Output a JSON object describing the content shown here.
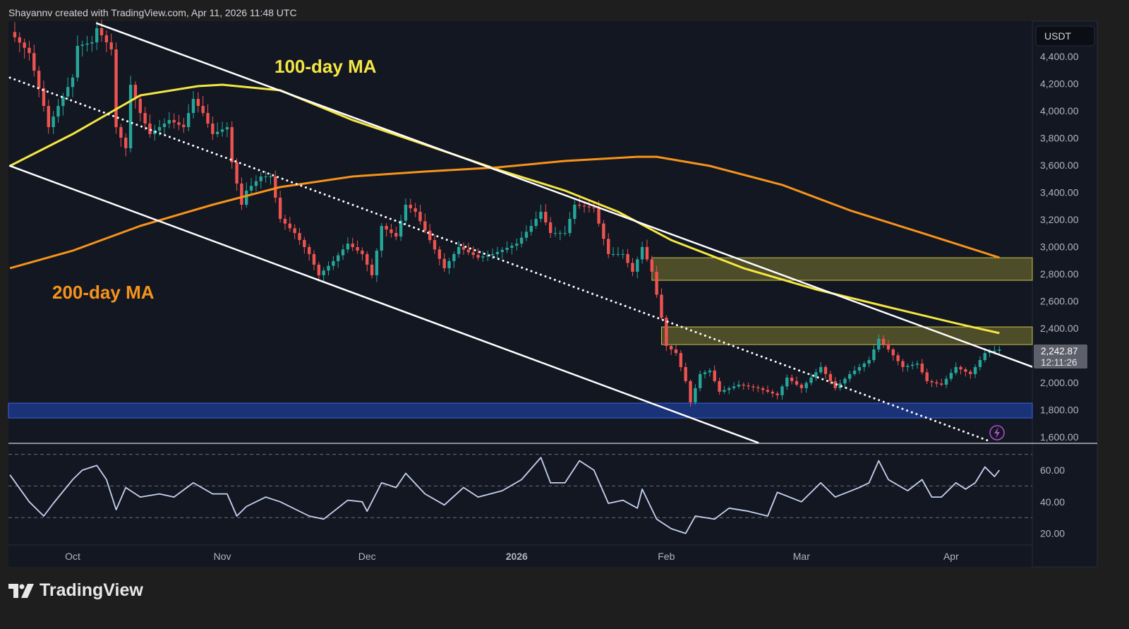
{
  "header": {
    "attribution": "Shayannv created with TradingView.com, Apr 11, 2026 11:48 UTC"
  },
  "footer": {
    "logo_text": "TradingView"
  },
  "colors": {
    "up": "#26a69a",
    "down": "#ef5350",
    "ma100": "#f5e642",
    "ma200": "#f7931a",
    "background": "#131722",
    "rsi": "#c5d3f0"
  },
  "chart_data": {
    "type": "candlestick",
    "currency": "USDT",
    "yticks": [
      "4,400.00",
      "4,200.00",
      "4,000.00",
      "3,800.00",
      "3,600.00",
      "3,400.00",
      "3,200.00",
      "3,000.00",
      "2,800.00",
      "2,600.00",
      "2,400.00",
      "2,000.00",
      "1,800.00",
      "1,600.00"
    ],
    "ytick_values": [
      4400,
      4200,
      4000,
      3800,
      3600,
      3400,
      3200,
      3000,
      2800,
      2600,
      2400,
      2000,
      1800,
      1600
    ],
    "ylim": [
      1600,
      4400
    ],
    "xticks": [
      {
        "label": "Oct",
        "date": "2025-10-01"
      },
      {
        "label": "Nov",
        "date": "2025-11-01"
      },
      {
        "label": "Dec",
        "date": "2025-12-01"
      },
      {
        "label": "2026",
        "date": "2026-01-01"
      },
      {
        "label": "Feb",
        "date": "2026-02-01"
      },
      {
        "label": "Mar",
        "date": "2026-03-01"
      },
      {
        "label": "Apr",
        "date": "2026-04-01"
      }
    ],
    "last_price": "2,242.87",
    "countdown": "12:11:26",
    "closes": [
      [
        "2025-09-18",
        4580
      ],
      [
        "2025-09-22",
        4425
      ],
      [
        "2025-09-25",
        4036
      ],
      [
        "2025-09-26",
        3880
      ],
      [
        "2025-09-28",
        4036
      ],
      [
        "2025-10-01",
        4245
      ],
      [
        "2025-10-02",
        4478
      ],
      [
        "2025-10-05",
        4504
      ],
      [
        "2025-10-06",
        4608
      ],
      [
        "2025-10-09",
        4452
      ],
      [
        "2025-10-10",
        3880
      ],
      [
        "2025-10-12",
        3725
      ],
      [
        "2025-10-13",
        4192
      ],
      [
        "2025-10-15",
        3984
      ],
      [
        "2025-10-17",
        3829
      ],
      [
        "2025-10-21",
        3932
      ],
      [
        "2025-10-24",
        3880
      ],
      [
        "2025-10-26",
        4088
      ],
      [
        "2025-10-28",
        3984
      ],
      [
        "2025-10-30",
        3829
      ],
      [
        "2025-11-02",
        3880
      ],
      [
        "2025-11-03",
        3621
      ],
      [
        "2025-11-05",
        3309
      ],
      [
        "2025-11-06",
        3413
      ],
      [
        "2025-11-09",
        3517
      ],
      [
        "2025-11-11",
        3517
      ],
      [
        "2025-11-13",
        3205
      ],
      [
        "2025-11-16",
        3101
      ],
      [
        "2025-11-19",
        2946
      ],
      [
        "2025-11-21",
        2790
      ],
      [
        "2025-11-24",
        2894
      ],
      [
        "2025-11-27",
        3023
      ],
      [
        "2025-11-30",
        2946
      ],
      [
        "2025-12-02",
        2790
      ],
      [
        "2025-12-04",
        3153
      ],
      [
        "2025-12-07",
        3075
      ],
      [
        "2025-12-09",
        3309
      ],
      [
        "2025-12-11",
        3257
      ],
      [
        "2025-12-14",
        3049
      ],
      [
        "2025-12-17",
        2842
      ],
      [
        "2025-12-20",
        2998
      ],
      [
        "2025-12-24",
        2920
      ],
      [
        "2025-12-27",
        2946
      ],
      [
        "2026-01-01",
        3023
      ],
      [
        "2026-01-04",
        3153
      ],
      [
        "2026-01-06",
        3257
      ],
      [
        "2026-01-08",
        3101
      ],
      [
        "2026-01-11",
        3101
      ],
      [
        "2026-01-13",
        3309
      ],
      [
        "2026-01-17",
        3283
      ],
      [
        "2026-01-20",
        2946
      ],
      [
        "2026-01-23",
        2946
      ],
      [
        "2026-01-25",
        2816
      ],
      [
        "2026-01-27",
        2998
      ],
      [
        "2026-01-29",
        2816
      ],
      [
        "2026-01-31",
        2478
      ],
      [
        "2026-02-01",
        2270
      ],
      [
        "2026-02-03",
        2218
      ],
      [
        "2026-02-05",
        2011
      ],
      [
        "2026-02-06",
        1855
      ],
      [
        "2026-02-08",
        2063
      ],
      [
        "2026-02-10",
        2089
      ],
      [
        "2026-02-12",
        1933
      ],
      [
        "2026-02-16",
        1985
      ],
      [
        "2026-02-20",
        1959
      ],
      [
        "2026-02-24",
        1907
      ],
      [
        "2026-02-26",
        2037
      ],
      [
        "2026-03-01",
        1959
      ],
      [
        "2026-03-05",
        2115
      ],
      [
        "2026-03-08",
        1959
      ],
      [
        "2026-03-11",
        2063
      ],
      [
        "2026-03-15",
        2166
      ],
      [
        "2026-03-17",
        2322
      ],
      [
        "2026-03-19",
        2244
      ],
      [
        "2026-03-22",
        2115
      ],
      [
        "2026-03-25",
        2140
      ],
      [
        "2026-03-27",
        2011
      ],
      [
        "2026-03-30",
        1985
      ],
      [
        "2026-04-02",
        2115
      ],
      [
        "2026-04-05",
        2063
      ],
      [
        "2026-04-08",
        2218
      ],
      [
        "2026-04-11",
        2242.87
      ]
    ],
    "series": [
      {
        "name": "100-day MA",
        "color": "#f5e642",
        "points": [
          [
            "2025-09-18",
            3595
          ],
          [
            "2025-10-01",
            3829
          ],
          [
            "2025-10-15",
            4114
          ],
          [
            "2025-10-27",
            4182
          ],
          [
            "2025-11-01",
            4192
          ],
          [
            "2025-11-13",
            4151
          ],
          [
            "2025-11-28",
            3932
          ],
          [
            "2025-12-13",
            3751
          ],
          [
            "2025-12-28",
            3569
          ],
          [
            "2026-01-11",
            3413
          ],
          [
            "2026-01-22",
            3257
          ],
          [
            "2026-02-02",
            3049
          ],
          [
            "2026-02-17",
            2842
          ],
          [
            "2026-03-04",
            2686
          ],
          [
            "2026-03-19",
            2556
          ],
          [
            "2026-04-02",
            2437
          ],
          [
            "2026-04-11",
            2364
          ]
        ]
      },
      {
        "name": "200-day MA",
        "color": "#f7931a",
        "points": [
          [
            "2025-09-18",
            2842
          ],
          [
            "2025-10-01",
            2971
          ],
          [
            "2025-10-15",
            3153
          ],
          [
            "2025-10-30",
            3309
          ],
          [
            "2025-11-13",
            3439
          ],
          [
            "2025-11-28",
            3517
          ],
          [
            "2025-12-13",
            3553
          ],
          [
            "2025-12-28",
            3584
          ],
          [
            "2026-01-11",
            3631
          ],
          [
            "2026-01-26",
            3662
          ],
          [
            "2026-01-30",
            3662
          ],
          [
            "2026-02-10",
            3595
          ],
          [
            "2026-02-25",
            3455
          ],
          [
            "2026-03-11",
            3268
          ],
          [
            "2026-03-26",
            3101
          ],
          [
            "2026-04-11",
            2920
          ]
        ]
      }
    ],
    "trendlines": [
      {
        "style": "solid",
        "from": [
          "2025-10-06",
          4644
        ],
        "to": [
          "2026-04-18",
          2114
        ]
      },
      {
        "style": "solid",
        "from": [
          "2025-09-18",
          3595
        ],
        "to": [
          "2026-02-20",
          1558
        ]
      },
      {
        "style": "dotted",
        "from": [
          "2025-09-18",
          4244
        ],
        "to": [
          "2026-04-09",
          1569
        ]
      }
    ],
    "zones": [
      {
        "color": "yellow",
        "from_date": "2026-01-29",
        "top": 2919,
        "bottom": 2753
      },
      {
        "color": "yellow",
        "from_date": "2026-01-31",
        "top": 2410,
        "bottom": 2280
      },
      {
        "color": "blue",
        "from_date": "2025-09-14",
        "top": 1849,
        "bottom": 1740
      }
    ],
    "annotations": [
      {
        "text": "100-day MA",
        "color": "#f5e642"
      },
      {
        "text": "200-day MA",
        "color": "#f7931a"
      }
    ],
    "rsi": {
      "yticks": [
        "60.00",
        "40.00",
        "20.00"
      ],
      "ytick_values": [
        60,
        40,
        20
      ],
      "bands": [
        70,
        50,
        30
      ],
      "ylim": [
        15,
        75
      ],
      "values": [
        [
          "2025-09-18",
          57
        ],
        [
          "2025-09-22",
          40
        ],
        [
          "2025-09-25",
          31
        ],
        [
          "2025-09-27",
          39
        ],
        [
          "2025-10-01",
          54
        ],
        [
          "2025-10-03",
          60
        ],
        [
          "2025-10-06",
          63
        ],
        [
          "2025-10-08",
          54
        ],
        [
          "2025-10-10",
          35
        ],
        [
          "2025-10-12",
          49
        ],
        [
          "2025-10-15",
          43
        ],
        [
          "2025-10-19",
          45
        ],
        [
          "2025-10-22",
          43
        ],
        [
          "2025-10-26",
          52
        ],
        [
          "2025-10-30",
          45
        ],
        [
          "2025-11-02",
          45
        ],
        [
          "2025-11-04",
          31
        ],
        [
          "2025-11-06",
          37
        ],
        [
          "2025-11-10",
          43
        ],
        [
          "2025-11-13",
          40
        ],
        [
          "2025-11-19",
          31
        ],
        [
          "2025-11-22",
          29
        ],
        [
          "2025-11-27",
          41
        ],
        [
          "2025-11-30",
          40
        ],
        [
          "2025-12-01",
          34
        ],
        [
          "2025-12-04",
          52
        ],
        [
          "2025-12-07",
          49
        ],
        [
          "2025-12-09",
          58
        ],
        [
          "2025-12-13",
          45
        ],
        [
          "2025-12-17",
          38
        ],
        [
          "2025-12-21",
          49
        ],
        [
          "2025-12-24",
          43
        ],
        [
          "2025-12-29",
          47
        ],
        [
          "2026-01-02",
          54
        ],
        [
          "2026-01-06",
          68
        ],
        [
          "2026-01-08",
          52
        ],
        [
          "2026-01-11",
          52
        ],
        [
          "2026-01-14",
          66
        ],
        [
          "2026-01-17",
          60
        ],
        [
          "2026-01-20",
          39
        ],
        [
          "2026-01-23",
          41
        ],
        [
          "2026-01-26",
          36
        ],
        [
          "2026-01-27",
          48
        ],
        [
          "2026-01-30",
          29
        ],
        [
          "2026-02-02",
          23
        ],
        [
          "2026-02-05",
          20
        ],
        [
          "2026-02-07",
          31
        ],
        [
          "2026-02-11",
          29
        ],
        [
          "2026-02-14",
          36
        ],
        [
          "2026-02-18",
          34
        ],
        [
          "2026-02-22",
          31
        ],
        [
          "2026-02-24",
          46
        ],
        [
          "2026-03-01",
          40
        ],
        [
          "2026-03-05",
          52
        ],
        [
          "2026-03-08",
          43
        ],
        [
          "2026-03-13",
          49
        ],
        [
          "2026-03-15",
          52
        ],
        [
          "2026-03-17",
          66
        ],
        [
          "2026-03-19",
          54
        ],
        [
          "2026-03-23",
          47
        ],
        [
          "2026-03-26",
          54
        ],
        [
          "2026-03-28",
          43
        ],
        [
          "2026-03-30",
          43
        ],
        [
          "2026-04-02",
          52
        ],
        [
          "2026-04-04",
          48
        ],
        [
          "2026-04-06",
          52
        ],
        [
          "2026-04-08",
          62
        ],
        [
          "2026-04-10",
          56
        ],
        [
          "2026-04-11",
          60
        ]
      ]
    }
  }
}
